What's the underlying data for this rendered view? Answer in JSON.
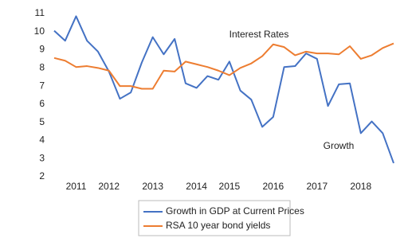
{
  "chart_data": {
    "type": "line",
    "categories": [
      null,
      null,
      "2011",
      null,
      null,
      "2012",
      null,
      null,
      null,
      "2013",
      null,
      null,
      null,
      "2014",
      null,
      null,
      "2015",
      null,
      null,
      null,
      "2016",
      null,
      null,
      null,
      "2017",
      null,
      null,
      null,
      "2018",
      null,
      null,
      null
    ],
    "series": [
      {
        "name": "Growth in GDP at Current Prices",
        "color": "#4472c4",
        "values": [
          10.05,
          9.5,
          10.85,
          9.5,
          8.9,
          7.8,
          6.3,
          6.65,
          8.3,
          9.7,
          8.75,
          9.6,
          7.15,
          6.9,
          7.55,
          7.35,
          8.35,
          6.75,
          6.25,
          4.75,
          5.3,
          8.05,
          8.1,
          8.8,
          8.5,
          5.9,
          7.1,
          7.15,
          4.4,
          5.05,
          4.4,
          2.75
        ]
      },
      {
        "name": "RSA 10 year bond yields",
        "color": "#ed7d31",
        "values": [
          8.55,
          8.4,
          8.05,
          8.1,
          8.0,
          7.85,
          7.0,
          7.0,
          6.85,
          6.85,
          7.85,
          7.8,
          8.35,
          8.2,
          8.05,
          7.85,
          7.6,
          8.0,
          8.25,
          8.65,
          9.3,
          9.15,
          8.7,
          8.9,
          8.8,
          8.8,
          8.75,
          9.2,
          8.5,
          8.7,
          9.1,
          9.35
        ]
      }
    ],
    "ylim": [
      2,
      11
    ],
    "yticks": [
      2,
      3,
      4,
      5,
      6,
      7,
      8,
      9,
      10,
      11
    ],
    "annotations": [
      "Interest Rates",
      "Growth"
    ],
    "grid": false
  }
}
